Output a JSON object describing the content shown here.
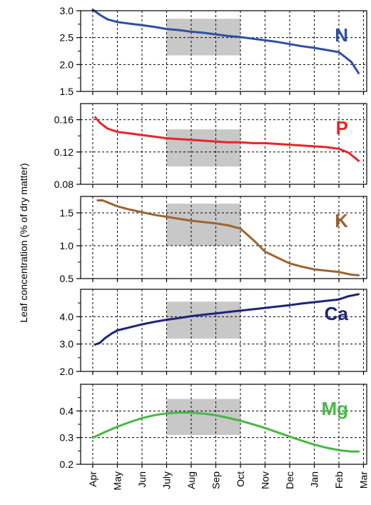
{
  "ylabel": "Leaf concentration (% of dry matter)",
  "xticks": [
    "Apr",
    "May",
    "Jun",
    "July",
    "Aug",
    "Sep",
    "Oct",
    "Nov",
    "Dec",
    "Jan",
    "Feb",
    "Mar"
  ],
  "chart_data": [
    {
      "type": "line",
      "label": "N",
      "color": "#2e4fa3",
      "x": [
        0,
        0.3,
        0.6,
        1,
        1.5,
        2,
        2.5,
        3,
        3.5,
        4,
        4.5,
        5,
        5.5,
        6,
        6.5,
        7,
        7.5,
        8,
        8.5,
        9,
        9.5,
        10,
        10.5,
        10.8
      ],
      "values": [
        3.02,
        2.92,
        2.84,
        2.79,
        2.76,
        2.73,
        2.7,
        2.66,
        2.64,
        2.61,
        2.59,
        2.56,
        2.53,
        2.51,
        2.48,
        2.45,
        2.42,
        2.38,
        2.34,
        2.31,
        2.27,
        2.23,
        2.05,
        1.84
      ],
      "ylim": [
        1.5,
        3.0
      ],
      "yticks": [
        "1.5",
        "2.0",
        "2.5",
        "3.0"
      ],
      "ytick_values": [
        1.5,
        2.0,
        2.5,
        3.0
      ],
      "minor_yticks": [
        1.75,
        2.25,
        2.75
      ],
      "optimum_range": {
        "x_start": 3,
        "x_end": 6,
        "y_low": 2.17,
        "y_high": 2.85
      }
    },
    {
      "type": "line",
      "label": "P",
      "color": "#e8252a",
      "x": [
        0.1,
        0.3,
        0.6,
        1,
        1.5,
        2,
        2.5,
        3,
        3.5,
        4,
        4.5,
        5,
        5.5,
        6,
        6.5,
        7,
        7.5,
        8,
        8.5,
        9,
        9.5,
        10,
        10.4,
        10.8
      ],
      "values": [
        0.163,
        0.156,
        0.149,
        0.145,
        0.143,
        0.141,
        0.139,
        0.137,
        0.136,
        0.135,
        0.134,
        0.133,
        0.132,
        0.132,
        0.131,
        0.131,
        0.13,
        0.129,
        0.128,
        0.127,
        0.126,
        0.124,
        0.119,
        0.109
      ],
      "ylim": [
        0.08,
        0.18
      ],
      "yticks": [
        "0.08",
        "0.12",
        "0.16"
      ],
      "ytick_values": [
        0.08,
        0.12,
        0.16
      ],
      "minor_yticks": [
        0.1,
        0.14
      ],
      "optimum_range": {
        "x_start": 3,
        "x_end": 6,
        "y_low": 0.102,
        "y_high": 0.148
      }
    },
    {
      "type": "line",
      "label": "K",
      "color": "#9e6430",
      "x": [
        0.2,
        0.4,
        0.6,
        1,
        1.5,
        2,
        2.5,
        3,
        3.5,
        4,
        4.5,
        5,
        5.5,
        6,
        6.3,
        6.6,
        7,
        7.5,
        8,
        8.5,
        9,
        9.5,
        10,
        10.5,
        10.8
      ],
      "values": [
        1.69,
        1.69,
        1.66,
        1.6,
        1.55,
        1.51,
        1.47,
        1.44,
        1.41,
        1.38,
        1.36,
        1.34,
        1.31,
        1.26,
        1.16,
        1.06,
        0.91,
        0.82,
        0.73,
        0.68,
        0.64,
        0.62,
        0.6,
        0.56,
        0.55
      ],
      "ylim": [
        0.5,
        1.75
      ],
      "yticks": [
        "0.5",
        "1.0",
        "1.5"
      ],
      "ytick_values": [
        0.5,
        1.0,
        1.5
      ],
      "minor_yticks": [
        0.75,
        1.25
      ],
      "optimum_range": {
        "x_start": 3,
        "x_end": 6,
        "y_low": 1.0,
        "y_high": 1.64
      }
    },
    {
      "type": "line",
      "label": "Ca",
      "color": "#1f2579",
      "x": [
        0.1,
        0.3,
        0.5,
        0.8,
        1,
        1.5,
        2,
        2.5,
        3,
        3.5,
        4,
        4.5,
        5,
        5.5,
        6,
        6.5,
        7,
        7.5,
        8,
        8.5,
        9,
        9.5,
        10,
        10.4,
        10.8
      ],
      "values": [
        2.98,
        3.05,
        3.22,
        3.4,
        3.5,
        3.61,
        3.72,
        3.81,
        3.89,
        3.95,
        4.02,
        4.07,
        4.12,
        4.17,
        4.22,
        4.27,
        4.32,
        4.37,
        4.42,
        4.48,
        4.53,
        4.58,
        4.63,
        4.75,
        4.82
      ],
      "ylim": [
        2.0,
        5.0
      ],
      "yticks": [
        "2.0",
        "3.0",
        "4.0"
      ],
      "ytick_values": [
        2.0,
        3.0,
        4.0
      ],
      "minor_yticks": [
        2.5,
        3.5,
        4.5
      ],
      "optimum_range": {
        "x_start": 3,
        "x_end": 6,
        "y_low": 3.2,
        "y_high": 4.55
      }
    },
    {
      "type": "line",
      "label": "Mg",
      "color": "#46b843",
      "x": [
        0,
        0.5,
        1,
        1.5,
        2,
        2.5,
        3,
        3.5,
        4,
        4.5,
        5,
        5.5,
        6,
        6.5,
        7,
        7.5,
        8,
        8.5,
        9,
        9.5,
        10,
        10.5,
        10.8
      ],
      "values": [
        0.3,
        0.321,
        0.341,
        0.358,
        0.373,
        0.384,
        0.391,
        0.394,
        0.394,
        0.39,
        0.384,
        0.374,
        0.363,
        0.35,
        0.336,
        0.32,
        0.304,
        0.288,
        0.274,
        0.262,
        0.253,
        0.248,
        0.248
      ],
      "ylim": [
        0.2,
        0.5
      ],
      "yticks": [
        "0.2",
        "0.3",
        "0.4"
      ],
      "ytick_values": [
        0.2,
        0.3,
        0.4
      ],
      "minor_yticks": [
        0.25,
        0.35,
        0.45
      ],
      "optimum_range": {
        "x_start": 3,
        "x_end": 6,
        "y_low": 0.31,
        "y_high": 0.445
      }
    }
  ]
}
